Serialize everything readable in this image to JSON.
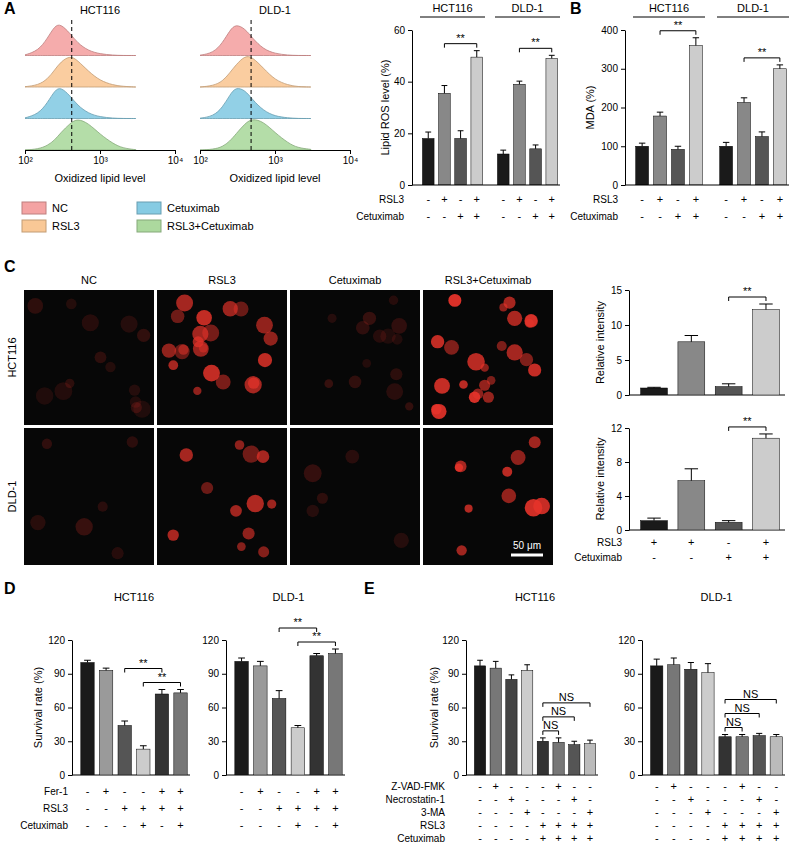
{
  "chart_data": [
    {
      "type": "area",
      "panel": "A",
      "panels": [
        "HCT116",
        "DLD-1"
      ],
      "log": "x",
      "x": [
        100,
        150,
        200,
        250,
        300,
        400,
        500,
        700,
        1000,
        1500,
        2000,
        3000
      ],
      "xlim": [
        100,
        10000
      ],
      "xticks": [
        {
          "value": 100,
          "label": "10²"
        },
        {
          "value": 1000,
          "label": "10³"
        },
        {
          "value": 10000,
          "label": "10⁴"
        }
      ],
      "ylim": [
        0,
        100
      ],
      "tick_labels": "x",
      "xlabel": "Oxidized lipid level",
      "reference_lines": [
        420,
        480
      ],
      "legend": "bottom",
      "series": [
        {
          "name": "NC",
          "color": "#f4a3a3",
          "values": [
            [
              2,
              15,
              55,
              95,
              100,
              70,
              40,
              15,
              5,
              1,
              0,
              0
            ],
            [
              1,
              8,
              40,
              80,
              100,
              85,
              55,
              20,
              6,
              1,
              0,
              0
            ]
          ]
        },
        {
          "name": "RSL3",
          "color": "#f9c896",
          "values": [
            [
              1,
              6,
              25,
              55,
              80,
              100,
              85,
              50,
              20,
              6,
              2,
              0
            ],
            [
              0,
              4,
              18,
              45,
              70,
              100,
              95,
              60,
              22,
              6,
              1,
              0
            ]
          ]
        },
        {
          "name": "Cetuximab",
          "color": "#86cbe3",
          "values": [
            [
              2,
              14,
              50,
              90,
              100,
              72,
              42,
              16,
              5,
              1,
              0,
              0
            ],
            [
              1,
              7,
              35,
              75,
              100,
              90,
              60,
              25,
              7,
              2,
              0,
              0
            ]
          ]
        },
        {
          "name": "RSL3+Cetuximab",
          "color": "#acd99e",
          "values": [
            [
              0,
              3,
              14,
              32,
              55,
              85,
              100,
              85,
              50,
              20,
              6,
              1
            ],
            [
              0,
              2,
              10,
              28,
              50,
              85,
              100,
              90,
              55,
              22,
              7,
              2
            ]
          ]
        }
      ]
    },
    {
      "type": "bar",
      "ylabel": "Lipid ROS level (%)",
      "ylim": [
        0,
        60
      ],
      "yticks": [
        0,
        20,
        40,
        60
      ],
      "colors": [
        "#1a1a1a",
        "#888888",
        "#555555",
        "#cccccc"
      ],
      "conditions": [
        {
          "name": "RSL3",
          "signs": [
            "-",
            "+",
            "-",
            "+"
          ]
        },
        {
          "name": "Cetuximab",
          "signs": [
            "-",
            "-",
            "+",
            "+"
          ]
        }
      ],
      "groups": [
        {
          "title": "HCT116",
          "values": [
            18,
            35.5,
            18,
            49.5
          ],
          "errors": [
            2.5,
            3,
            3,
            2.5
          ],
          "significance": [
            {
              "pair": [
                1,
                3
              ],
              "label": "**"
            }
          ]
        },
        {
          "title": "DLD-1",
          "values": [
            12,
            39,
            14,
            49
          ],
          "errors": [
            1.5,
            1.2,
            1.5,
            1.2
          ],
          "significance": [
            {
              "pair": [
                1,
                3
              ],
              "label": "**"
            }
          ]
        }
      ]
    },
    {
      "type": "bar",
      "panel": "B",
      "ylabel": "MDA (%)",
      "ylim": [
        0,
        400
      ],
      "yticks": [
        0,
        100,
        200,
        300,
        400
      ],
      "colors": [
        "#1a1a1a",
        "#888888",
        "#555555",
        "#cccccc"
      ],
      "conditions": [
        {
          "name": "RSL3",
          "signs": [
            "-",
            "+",
            "-",
            "+"
          ]
        },
        {
          "name": "Cetuximab",
          "signs": [
            "-",
            "-",
            "+",
            "+"
          ]
        }
      ],
      "groups": [
        {
          "title": "HCT116",
          "values": [
            100,
            178,
            92,
            360
          ],
          "errors": [
            8,
            10,
            8,
            20
          ],
          "significance": [
            {
              "pair": [
                1,
                3
              ],
              "label": "**"
            }
          ]
        },
        {
          "title": "DLD-1",
          "values": [
            100,
            213,
            125,
            300
          ],
          "errors": [
            10,
            12,
            12,
            10
          ],
          "significance": [
            {
              "pair": [
                1,
                3
              ],
              "label": "**"
            }
          ]
        }
      ]
    },
    {
      "type": "image",
      "panel": "C",
      "columns": [
        "NC",
        "RSL3",
        "Cetuximab",
        "RSL3+Cetuximab"
      ],
      "rows": [
        "HCT116",
        "DLD-1"
      ],
      "scale_bar": "50 μm"
    },
    {
      "type": "bar",
      "ylabel": "Relative intensity",
      "ylim": [
        0,
        15
      ],
      "yticks": [
        0,
        5,
        10,
        15
      ],
      "colors": [
        "#1a1a1a",
        "#888888",
        "#555555",
        "#cccccc"
      ],
      "groups": [
        {
          "values": [
            1,
            7.6,
            1.2,
            12.2
          ],
          "errors": [
            0.1,
            0.9,
            0.4,
            0.8
          ],
          "significance": [
            {
              "pair": [
                2,
                3
              ],
              "label": "**"
            }
          ]
        }
      ]
    },
    {
      "type": "bar",
      "ylabel": "Relative intensity",
      "ylim": [
        0,
        12
      ],
      "yticks": [
        0,
        4,
        8,
        12
      ],
      "colors": [
        "#1a1a1a",
        "#888888",
        "#555555",
        "#cccccc"
      ],
      "conditions": [
        {
          "name": "RSL3",
          "signs": [
            "+",
            "+",
            "-",
            "+"
          ]
        },
        {
          "name": "Cetuximab",
          "signs": [
            "-",
            "-",
            "+",
            "+"
          ]
        }
      ],
      "groups": [
        {
          "values": [
            1.1,
            5.8,
            0.9,
            10.8
          ],
          "errors": [
            0.3,
            1.4,
            0.2,
            0.5
          ],
          "significance": [
            {
              "pair": [
                2,
                3
              ],
              "label": "**"
            }
          ]
        }
      ]
    },
    {
      "type": "bar",
      "panel": "D",
      "ylabel": "Survival rate (%)",
      "ylim": [
        0,
        120
      ],
      "yticks": [
        0,
        30,
        60,
        90,
        120
      ],
      "colors": [
        "#1a1a1a",
        "#9a9a9a",
        "#555555",
        "#cccccc",
        "#333333",
        "#777777"
      ],
      "conditions": [
        {
          "name": "Fer-1",
          "signs": [
            "-",
            "+",
            "-",
            "-",
            "+",
            "+"
          ]
        },
        {
          "name": "RSL3",
          "signs": [
            "-",
            "-",
            "+",
            "+",
            "+",
            "+"
          ]
        },
        {
          "name": "Cetuximab",
          "signs": [
            "-",
            "-",
            "-",
            "+",
            "-",
            "+"
          ]
        }
      ],
      "groups": [
        {
          "title": "HCT116",
          "values": [
            100,
            93,
            44,
            23,
            72,
            73
          ],
          "errors": [
            2,
            2,
            4,
            3,
            4,
            3
          ],
          "significance": [
            {
              "pair": [
                3,
                5
              ],
              "label": "**"
            },
            {
              "pair": [
                2,
                4
              ],
              "label": "**"
            }
          ]
        },
        {
          "title": "DLD-1",
          "values": [
            101,
            97,
            68,
            42,
            106,
            108
          ],
          "errors": [
            3,
            4,
            7,
            2,
            2,
            4
          ],
          "significance": [
            {
              "pair": [
                3,
                5
              ],
              "label": "**"
            },
            {
              "pair": [
                2,
                4
              ],
              "label": "**"
            }
          ]
        }
      ]
    },
    {
      "type": "bar",
      "panel": "E",
      "ylabel": "Survival rate (%)",
      "ylim": [
        0,
        120
      ],
      "yticks": [
        0,
        30,
        60,
        90,
        120
      ],
      "colors": [
        "#1a1a1a",
        "#777777",
        "#444444",
        "#cccccc",
        "#333333",
        "#777777",
        "#555555",
        "#bbbbbb"
      ],
      "conditions": [
        {
          "name": "Z-VAD-FMK",
          "signs": [
            "-",
            "+",
            "-",
            "-",
            "-",
            "+",
            "-",
            "-"
          ]
        },
        {
          "name": "Necrostatin-1",
          "signs": [
            "-",
            "-",
            "+",
            "-",
            "-",
            "-",
            "+",
            "-"
          ]
        },
        {
          "name": "3-MA",
          "signs": [
            "-",
            "-",
            "-",
            "+",
            "-",
            "-",
            "-",
            "+"
          ]
        },
        {
          "name": "RSL3",
          "signs": [
            "-",
            "-",
            "-",
            "-",
            "+",
            "+",
            "+",
            "+"
          ]
        },
        {
          "name": "Cetuximab",
          "signs": [
            "-",
            "-",
            "-",
            "-",
            "+",
            "+",
            "+",
            "+"
          ]
        }
      ],
      "groups": [
        {
          "title": "HCT116",
          "values": [
            97,
            95,
            85,
            93,
            30,
            29,
            27,
            28
          ],
          "errors": [
            5,
            6,
            4,
            5,
            3,
            4,
            3,
            3
          ],
          "significance": [
            {
              "pair": [
                4,
                5
              ],
              "label": "NS"
            },
            {
              "pair": [
                4,
                6
              ],
              "label": "NS"
            },
            {
              "pair": [
                4,
                7
              ],
              "label": "NS"
            }
          ]
        },
        {
          "title": "DLD-1",
          "values": [
            97,
            98,
            94,
            91,
            34,
            34,
            35,
            34
          ],
          "errors": [
            6,
            6,
            6,
            8,
            2,
            2,
            2,
            2
          ],
          "significance": [
            {
              "pair": [
                4,
                5
              ],
              "label": "NS"
            },
            {
              "pair": [
                4,
                6
              ],
              "label": "NS"
            },
            {
              "pair": [
                4,
                7
              ],
              "label": "NS"
            }
          ]
        }
      ]
    }
  ]
}
